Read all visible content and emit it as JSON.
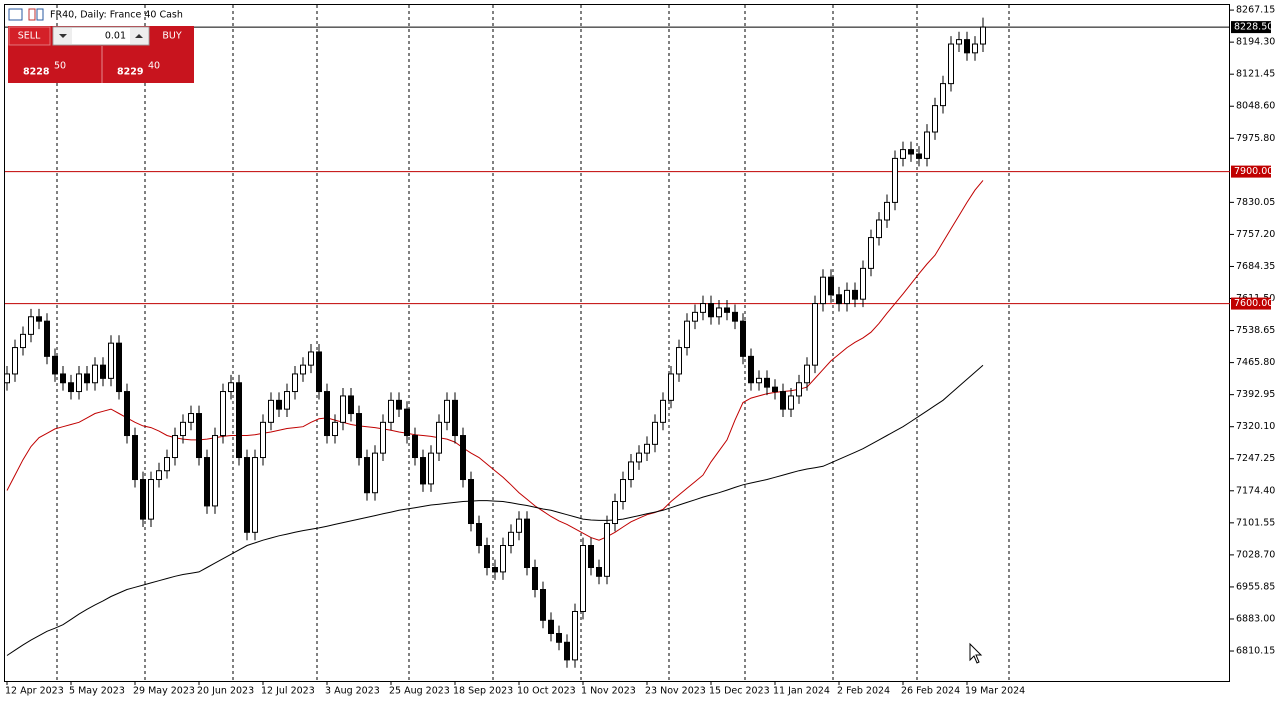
{
  "header": {
    "title": "FR40, Daily:  France 40 Cash"
  },
  "trade_panel": {
    "sell_label": "SELL",
    "buy_label": "BUY",
    "lot": "0.01",
    "sell_main": "8228",
    "sell_pips": "50",
    "buy_main": "8229",
    "buy_pips": "40"
  },
  "chart_data": {
    "type": "candlestick",
    "categories": [
      "12 Apr 2023",
      null,
      null,
      null,
      null,
      null,
      null,
      null,
      "5 May 2023",
      null,
      null,
      null,
      null,
      null,
      null,
      null,
      "29 May 2023",
      null,
      null,
      null,
      null,
      null,
      null,
      null,
      "20 Jun 2023",
      null,
      null,
      null,
      null,
      null,
      null,
      null,
      "12 Jul 2023",
      null,
      null,
      null,
      null,
      null,
      null,
      null,
      "3 Aug 2023",
      null,
      null,
      null,
      null,
      null,
      null,
      null,
      "25 Aug 2023",
      null,
      null,
      null,
      null,
      null,
      null,
      null,
      "18 Sep 2023",
      null,
      null,
      null,
      null,
      null,
      null,
      null,
      "10 Oct 2023",
      null,
      null,
      null,
      null,
      null,
      null,
      null,
      "1 Nov 2023",
      null,
      null,
      null,
      null,
      null,
      null,
      null,
      "23 Nov 2023",
      null,
      null,
      null,
      null,
      null,
      null,
      null,
      "15 Dec 2023",
      null,
      null,
      null,
      null,
      null,
      null,
      null,
      "11 Jan 2024",
      null,
      null,
      null,
      null,
      null,
      null,
      null,
      "2 Feb 2024",
      null,
      null,
      null,
      null,
      null,
      null,
      null,
      "26 Feb 2024",
      null,
      null,
      null,
      null,
      null,
      null,
      null,
      "19 Mar 2024",
      null,
      null
    ],
    "open": [
      7420,
      7440,
      7500,
      7530,
      7570,
      7560,
      7480,
      7440,
      7420,
      7400,
      7440,
      7420,
      7460,
      7430,
      7510,
      7400,
      7300,
      7200,
      7110,
      7200,
      7220,
      7250,
      7300,
      7330,
      7350,
      7250,
      7140,
      7300,
      7400,
      7420,
      7250,
      7080,
      7250,
      7330,
      7380,
      7360,
      7400,
      7440,
      7460,
      7490,
      7400,
      7300,
      7330,
      7390,
      7350,
      7250,
      7170,
      7260,
      7330,
      7380,
      7360,
      7300,
      7250,
      7190,
      7260,
      7330,
      7380,
      7300,
      7200,
      7100,
      7050,
      7000,
      6990,
      7050,
      7080,
      7110,
      7000,
      6950,
      6880,
      6850,
      6830,
      6790,
      6900,
      7050,
      7000,
      6980,
      7100,
      7150,
      7200,
      7240,
      7260,
      7280,
      7330,
      7380,
      7440,
      7500,
      7560,
      7580,
      7600,
      7570,
      7590,
      7580,
      7560,
      7480,
      7420,
      7430,
      7410,
      7400,
      7360,
      7390,
      7420,
      7460,
      7600,
      7660,
      7620,
      7600,
      7630,
      7610,
      7680,
      7750,
      7790,
      7830,
      7930,
      7950,
      7940,
      7930,
      7990,
      8050,
      8100,
      8190,
      8200,
      8170,
      8190
    ],
    "high": [
      7458,
      7518,
      7548,
      7588,
      7588,
      7578,
      7498,
      7458,
      7438,
      7458,
      7458,
      7478,
      7478,
      7528,
      7528,
      7418,
      7318,
      7218,
      7218,
      7238,
      7268,
      7318,
      7348,
      7368,
      7368,
      7268,
      7318,
      7418,
      7438,
      7438,
      7268,
      7268,
      7348,
      7398,
      7398,
      7418,
      7458,
      7478,
      7508,
      7508,
      7418,
      7348,
      7408,
      7408,
      7368,
      7268,
      7278,
      7348,
      7398,
      7398,
      7378,
      7318,
      7268,
      7278,
      7348,
      7398,
      7398,
      7318,
      7218,
      7118,
      7068,
      7018,
      7068,
      7098,
      7128,
      7128,
      7018,
      6968,
      6898,
      6868,
      6848,
      6918,
      7068,
      7068,
      7018,
      7118,
      7168,
      7218,
      7258,
      7278,
      7298,
      7348,
      7398,
      7458,
      7518,
      7578,
      7598,
      7618,
      7618,
      7608,
      7608,
      7598,
      7578,
      7498,
      7448,
      7448,
      7428,
      7418,
      7408,
      7438,
      7478,
      7618,
      7678,
      7678,
      7638,
      7648,
      7648,
      7698,
      7768,
      7808,
      7848,
      7948,
      7968,
      7968,
      7958,
      8008,
      8068,
      8118,
      8208,
      8218,
      8218,
      8208,
      8250
    ],
    "low": [
      7402,
      7422,
      7482,
      7512,
      7542,
      7462,
      7422,
      7402,
      7382,
      7382,
      7402,
      7402,
      7412,
      7412,
      7382,
      7282,
      7182,
      7092,
      7092,
      7182,
      7202,
      7232,
      7282,
      7312,
      7232,
      7122,
      7122,
      7282,
      7382,
      7232,
      7062,
      7062,
      7232,
      7312,
      7342,
      7342,
      7382,
      7422,
      7442,
      7382,
      7282,
      7282,
      7312,
      7332,
      7232,
      7152,
      7152,
      7242,
      7312,
      7342,
      7282,
      7232,
      7172,
      7172,
      7242,
      7312,
      7282,
      7182,
      7082,
      7032,
      6982,
      6972,
      6972,
      7032,
      7062,
      6982,
      6932,
      6862,
      6832,
      6812,
      6772,
      6772,
      6882,
      6982,
      6962,
      6962,
      7082,
      7132,
      7182,
      7222,
      7242,
      7262,
      7312,
      7362,
      7422,
      7482,
      7542,
      7562,
      7552,
      7552,
      7562,
      7542,
      7462,
      7402,
      7402,
      7392,
      7382,
      7342,
      7342,
      7372,
      7402,
      7442,
      7582,
      7602,
      7582,
      7582,
      7592,
      7592,
      7662,
      7732,
      7772,
      7812,
      7912,
      7922,
      7912,
      7912,
      7972,
      8032,
      8082,
      8172,
      8152,
      8152,
      8172
    ],
    "close": [
      7440,
      7500,
      7530,
      7570,
      7560,
      7480,
      7440,
      7420,
      7400,
      7440,
      7420,
      7460,
      7430,
      7510,
      7400,
      7300,
      7200,
      7110,
      7200,
      7220,
      7250,
      7300,
      7330,
      7350,
      7250,
      7140,
      7300,
      7400,
      7420,
      7250,
      7080,
      7250,
      7330,
      7380,
      7360,
      7400,
      7440,
      7460,
      7490,
      7400,
      7300,
      7330,
      7390,
      7350,
      7250,
      7170,
      7260,
      7330,
      7380,
      7360,
      7300,
      7250,
      7190,
      7260,
      7330,
      7380,
      7300,
      7200,
      7100,
      7050,
      7000,
      6990,
      7050,
      7080,
      7110,
      7000,
      6950,
      6880,
      6850,
      6830,
      6790,
      6900,
      7050,
      7000,
      6980,
      7100,
      7150,
      7200,
      7240,
      7260,
      7280,
      7330,
      7380,
      7440,
      7500,
      7560,
      7580,
      7600,
      7570,
      7590,
      7580,
      7560,
      7480,
      7420,
      7430,
      7410,
      7400,
      7360,
      7390,
      7420,
      7460,
      7600,
      7660,
      7620,
      7600,
      7630,
      7610,
      7680,
      7750,
      7790,
      7830,
      7930,
      7950,
      7940,
      7930,
      7990,
      8050,
      8100,
      8190,
      8200,
      8170,
      8190,
      8228.5
    ],
    "lines": [
      {
        "color": "#c00000",
        "values": [
          7175,
          7210,
          7245,
          7275,
          7295,
          7305,
          7315,
          7320,
          7325,
          7330,
          7340,
          7350,
          7355,
          7360,
          7350,
          7340,
          7330,
          7322,
          7318,
          7310,
          7300,
          7295,
          7292,
          7290,
          7290,
          7292,
          7295,
          7298,
          7300,
          7300,
          7300,
          7302,
          7305,
          7308,
          7312,
          7316,
          7318,
          7320,
          7330,
          7338,
          7340,
          7335,
          7330,
          7325,
          7322,
          7320,
          7318,
          7315,
          7312,
          7308,
          7305,
          7302,
          7300,
          7298,
          7295,
          7292,
          7285,
          7272,
          7260,
          7250,
          7235,
          7220,
          7205,
          7188,
          7170,
          7155,
          7140,
          7128,
          7116,
          7106,
          7098,
          7088,
          7078,
          7068,
          7062,
          7070,
          7080,
          7092,
          7104,
          7112,
          7120,
          7125,
          7132,
          7150,
          7165,
          7180,
          7195,
          7210,
          7240,
          7265,
          7290,
          7335,
          7375,
          7385,
          7390,
          7395,
          7398,
          7400,
          7402,
          7405,
          7410,
          7430,
          7450,
          7470,
          7485,
          7500,
          7512,
          7522,
          7535,
          7555,
          7578,
          7600,
          7622,
          7645,
          7668,
          7690,
          7710,
          7740,
          7770,
          7800,
          7830,
          7858,
          7880
        ]
      },
      {
        "color": "#000000",
        "values": [
          6800,
          6812,
          6824,
          6835,
          6845,
          6855,
          6862,
          6870,
          6882,
          6894,
          6905,
          6915,
          6924,
          6934,
          6942,
          6950,
          6955,
          6960,
          6965,
          6970,
          6975,
          6980,
          6984,
          6987,
          6990,
          7000,
          7010,
          7020,
          7030,
          7040,
          7050,
          7056,
          7062,
          7067,
          7072,
          7076,
          7080,
          7084,
          7087,
          7090,
          7094,
          7098,
          7102,
          7106,
          7110,
          7114,
          7118,
          7122,
          7126,
          7130,
          7133,
          7136,
          7139,
          7142,
          7144,
          7146,
          7148,
          7150,
          7151,
          7152,
          7152,
          7151,
          7150,
          7147,
          7144,
          7141,
          7137,
          7133,
          7130,
          7125,
          7120,
          7115,
          7110,
          7108,
          7107,
          7107,
          7108,
          7110,
          7114,
          7118,
          7122,
          7126,
          7130,
          7136,
          7142,
          7148,
          7154,
          7160,
          7165,
          7170,
          7176,
          7182,
          7188,
          7192,
          7196,
          7200,
          7205,
          7210,
          7215,
          7220,
          7224,
          7227,
          7230,
          7238,
          7246,
          7254,
          7262,
          7270,
          7280,
          7290,
          7300,
          7310,
          7320,
          7332,
          7344,
          7356,
          7368,
          7380,
          7396,
          7412,
          7428,
          7444,
          7460
        ]
      }
    ],
    "levels": [
      {
        "value": 7900,
        "label": "7900.00",
        "color": "#c00000"
      },
      {
        "value": 7600,
        "label": "7600.00",
        "color": "#c00000"
      },
      {
        "value": 8228.5,
        "label": "8228.50",
        "color": "#000000"
      }
    ],
    "ylim": [
      6742,
      8281
    ],
    "yticks": [
      8267.15,
      {
        "value": 8194.3,
        "label": "8194.30"
      },
      8121.45,
      {
        "value": 8048.6,
        "label": "8048.60"
      },
      {
        "value": 7975.8,
        "label": "7975.80"
      },
      7830.05,
      {
        "value": 7757.2,
        "label": "7757.20"
      },
      7684.35,
      {
        "value": 7611.5,
        "label": "7611.50"
      },
      7538.65,
      {
        "value": 7465.8,
        "label": "7465.80"
      },
      7392.95,
      {
        "value": 7320.1,
        "label": "7320.10"
      },
      7247.25,
      {
        "value": 7174.4,
        "label": "7174.40"
      },
      7101.55,
      {
        "value": 7028.7,
        "label": "7028.70"
      },
      6955.85,
      {
        "value": 6883,
        "label": "6883.00"
      },
      6810.15
    ]
  }
}
